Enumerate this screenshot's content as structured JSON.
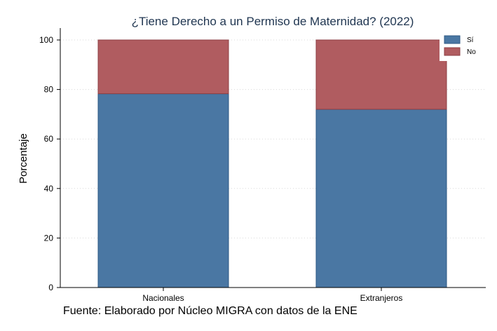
{
  "chart_data": {
    "type": "bar",
    "stacked": true,
    "title": "¿Tiene Derecho a un Permiso de Maternidad? (2022)",
    "xlabel": "",
    "ylabel": "Porcentaje",
    "categories": [
      "Nacionales",
      "Extranjeros"
    ],
    "series": [
      {
        "name": "Sí",
        "values": [
          78.3,
          72.0
        ],
        "color": "#4a77a3"
      },
      {
        "name": "No",
        "values": [
          21.7,
          28.0
        ],
        "color": "#b05c60"
      }
    ],
    "ylim": [
      0,
      100
    ],
    "yticks": [
      "0",
      "20",
      "40",
      "60",
      "80",
      "100"
    ],
    "grid": true,
    "legend_position": "top-right",
    "note": "Fuente: Elaborado por Núcleo MIGRA con datos de la ENE"
  }
}
